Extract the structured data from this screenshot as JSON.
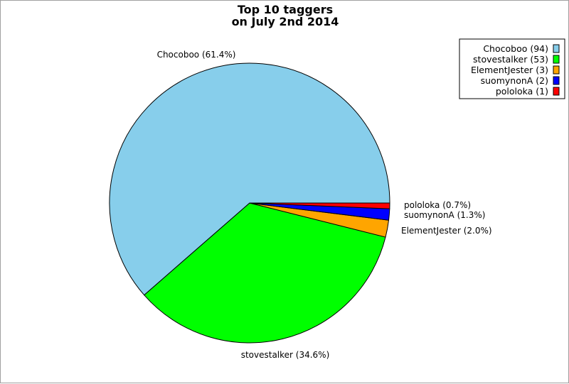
{
  "chart_data": {
    "type": "pie",
    "title": [
      "Top 10 taggers",
      "on July 2nd 2014"
    ],
    "slices": [
      {
        "name": "Chocoboo",
        "value": 94,
        "percent_label": "Chocoboo (61.4%)",
        "legend_label": "Chocoboo (94)",
        "color": "#87ceeb"
      },
      {
        "name": "stovestalker",
        "value": 53,
        "percent_label": "stovestalker (34.6%)",
        "legend_label": "stovestalker (53)",
        "color": "#00ff00"
      },
      {
        "name": "ElementJester",
        "value": 3,
        "percent_label": "ElementJester (2.0%)",
        "legend_label": "ElementJester (3)",
        "color": "#ffa500"
      },
      {
        "name": "suomynonA",
        "value": 2,
        "percent_label": "suomynonA (1.3%)",
        "legend_label": "suomynonA (2)",
        "color": "#0000ff"
      },
      {
        "name": "pololoka",
        "value": 1,
        "percent_label": "pololoka (0.7%)",
        "legend_label": "pololoka (1)",
        "color": "#ff0000"
      }
    ],
    "legend_position": "top-right"
  }
}
